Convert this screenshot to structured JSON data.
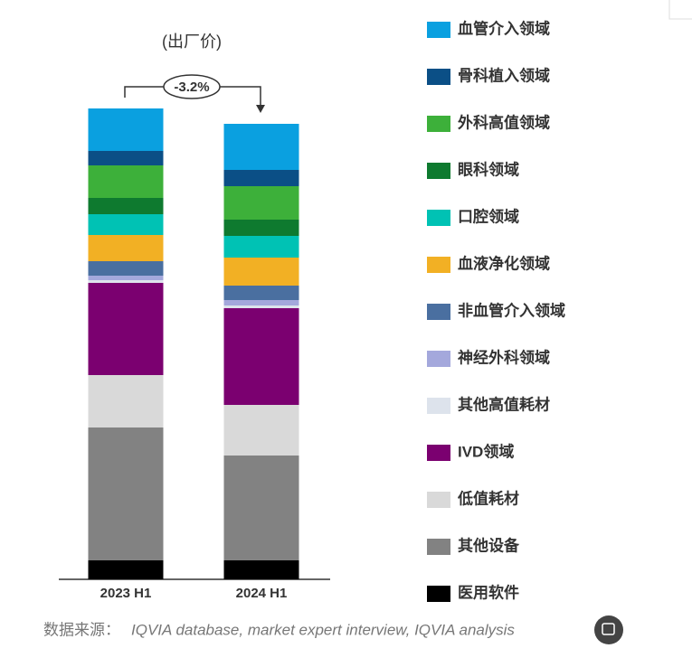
{
  "chart_data": {
    "type": "stacked_bar",
    "subtitle": "(出厂价)",
    "annotation": "-3.2%",
    "categories": [
      "2023 H1",
      "2024 H1"
    ],
    "ylim": [
      0,
      521
    ],
    "legend": "right",
    "series": [
      {
        "name": "血管介入领域",
        "color": "#0aa0e0",
        "values": [
          47,
          51
        ]
      },
      {
        "name": "骨科植入领域",
        "color": "#0b4f86",
        "values": [
          16,
          18
        ]
      },
      {
        "name": "外科高值领域",
        "color": "#3db03a",
        "values": [
          36,
          37
        ]
      },
      {
        "name": "眼科领域",
        "color": "#0e7a2f",
        "values": [
          18,
          18
        ]
      },
      {
        "name": "口腔领域",
        "color": "#00c2b4",
        "values": [
          23,
          24
        ]
      },
      {
        "name": "血液净化领域",
        "color": "#f2b024",
        "values": [
          29,
          31
        ]
      },
      {
        "name": "非血管介入领域",
        "color": "#4a6fa0",
        "values": [
          16,
          16
        ]
      },
      {
        "name": "神经外科领域",
        "color": "#a4a8dc",
        "values": [
          5,
          6
        ]
      },
      {
        "name": "其他高值耗材",
        "color": "#dde3ec",
        "values": [
          3,
          3
        ]
      },
      {
        "name": "IVD领域",
        "color": "#7b0070",
        "values": [
          102,
          107
        ]
      },
      {
        "name": "低值耗材",
        "color": "#d9d9d9",
        "values": [
          58,
          56
        ]
      },
      {
        "name": "其他设备",
        "color": "#828282",
        "values": [
          147,
          116
        ]
      },
      {
        "name": "医用软件",
        "color": "#000000",
        "values": [
          21,
          21
        ]
      }
    ],
    "source_label": "数据来源：",
    "source": "IQVIA database, market expert interview, IQVIA analysis"
  }
}
